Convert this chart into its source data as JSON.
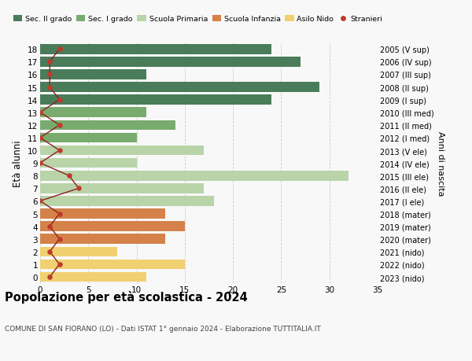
{
  "ages": [
    18,
    17,
    16,
    15,
    14,
    13,
    12,
    11,
    10,
    9,
    8,
    7,
    6,
    5,
    4,
    3,
    2,
    1,
    0
  ],
  "right_labels": [
    "2005 (V sup)",
    "2006 (IV sup)",
    "2007 (III sup)",
    "2008 (II sup)",
    "2009 (I sup)",
    "2010 (III med)",
    "2011 (II med)",
    "2012 (I med)",
    "2013 (V ele)",
    "2014 (IV ele)",
    "2015 (III ele)",
    "2016 (II ele)",
    "2017 (I ele)",
    "2018 (mater)",
    "2019 (mater)",
    "2020 (mater)",
    "2021 (nido)",
    "2022 (nido)",
    "2023 (nido)"
  ],
  "bar_values": [
    24,
    27,
    11,
    29,
    24,
    11,
    14,
    10,
    17,
    10,
    32,
    17,
    18,
    13,
    15,
    13,
    8,
    15,
    11
  ],
  "bar_colors": [
    "#4a7c59",
    "#4a7c59",
    "#4a7c59",
    "#4a7c59",
    "#4a7c59",
    "#7aab6e",
    "#7aab6e",
    "#7aab6e",
    "#b8d4a8",
    "#b8d4a8",
    "#b8d4a8",
    "#b8d4a8",
    "#b8d4a8",
    "#d4824a",
    "#d4824a",
    "#d4824a",
    "#f0d070",
    "#f0d070",
    "#f0d070"
  ],
  "stranieri_values": [
    2,
    1,
    1,
    1,
    2,
    0,
    2,
    0,
    2,
    0,
    3,
    4,
    0,
    2,
    1,
    2,
    1,
    2,
    1
  ],
  "title": "Popolazione per età scolastica - 2024",
  "subtitle": "COMUNE DI SAN FIORANO (LO) - Dati ISTAT 1° gennaio 2024 - Elaborazione TUTTITALIA.IT",
  "ylabel": "Età alunni",
  "right_ylabel": "Anni di nascita",
  "legend_labels": [
    "Sec. II grado",
    "Sec. I grado",
    "Scuola Primaria",
    "Scuola Infanzia",
    "Asilo Nido",
    "Stranieri"
  ],
  "legend_colors": [
    "#4a7c59",
    "#7aab6e",
    "#b8d4a8",
    "#d4824a",
    "#f0d070",
    "#c0392b"
  ],
  "xlim": [
    0,
    35
  ],
  "bg_color": "#f8f8f8",
  "grid_color": "#cccccc"
}
